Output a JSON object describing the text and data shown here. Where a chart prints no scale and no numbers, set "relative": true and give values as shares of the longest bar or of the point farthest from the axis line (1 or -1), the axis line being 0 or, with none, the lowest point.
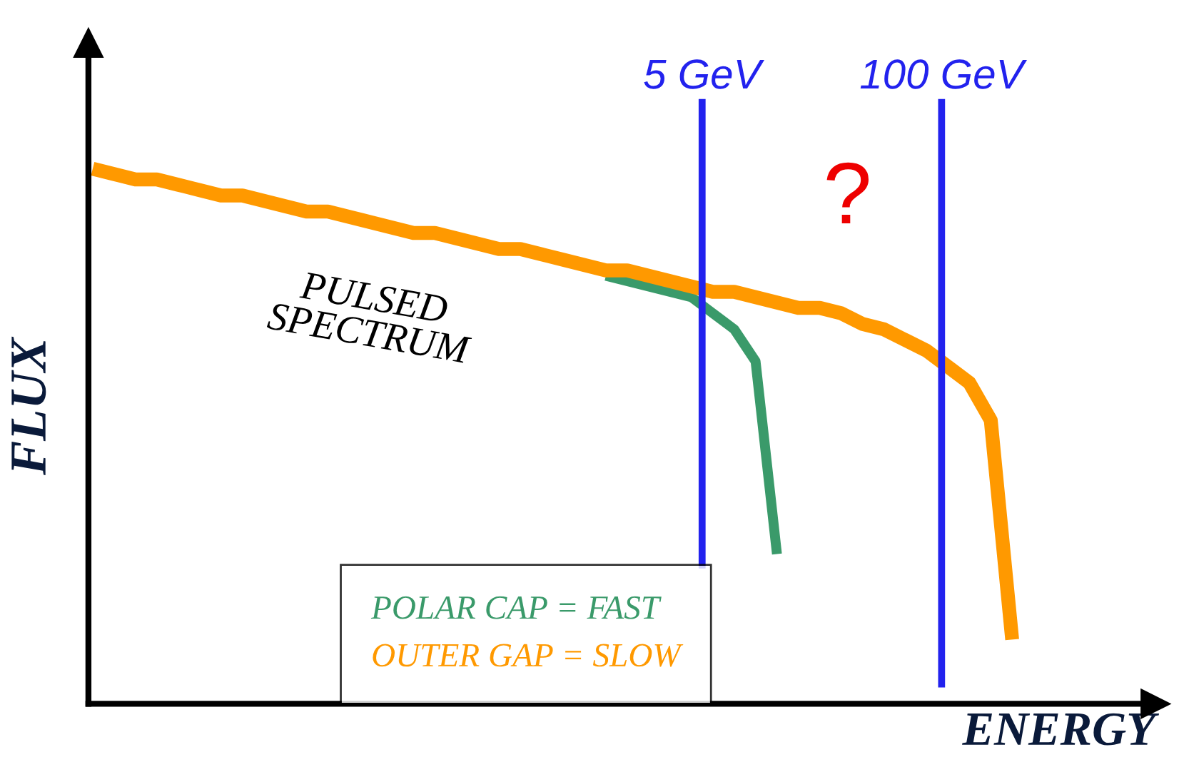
{
  "chart_data": {
    "type": "line",
    "relative": true,
    "xlabel": "ENERGY",
    "ylabel": "FLUX",
    "legend": "bottom",
    "marker": "none",
    "line_style": "solid",
    "categories": [
      null,
      null,
      null,
      null,
      null,
      null,
      null,
      null,
      null,
      null,
      null,
      null,
      null,
      null,
      null,
      null,
      null,
      null,
      null,
      null,
      null,
      null,
      null,
      null,
      null,
      null,
      null,
      null,
      null,
      null,
      null,
      null,
      null,
      null,
      null,
      null,
      null,
      null,
      null,
      null,
      null,
      null,
      null,
      null,
      null,
      null,
      null,
      null,
      null,
      null
    ],
    "series": [
      {
        "name": "POLAR CAP = FAST",
        "color": "#3a9a6a",
        "values": [
          null,
          null,
          null,
          null,
          null,
          null,
          null,
          null,
          null,
          null,
          null,
          null,
          null,
          null,
          null,
          null,
          null,
          null,
          null,
          null,
          null,
          null,
          null,
          null,
          0.8,
          0.79,
          0.78,
          0.77,
          0.76,
          0.73,
          0.7,
          0.64,
          0.28,
          null,
          null,
          null,
          null,
          null,
          null,
          null,
          null,
          null,
          null,
          null,
          null,
          null,
          null,
          null,
          null,
          null
        ]
      },
      {
        "name": "OUTER GAP = SLOW",
        "color": "#ff9900",
        "values": [
          1.0,
          0.99,
          0.98,
          0.98,
          0.97,
          0.96,
          0.95,
          0.95,
          0.94,
          0.93,
          0.92,
          0.92,
          0.91,
          0.9,
          0.89,
          0.88,
          0.88,
          0.87,
          0.86,
          0.85,
          0.85,
          0.84,
          0.83,
          0.82,
          0.81,
          0.81,
          0.8,
          0.79,
          0.78,
          0.77,
          0.77,
          0.76,
          0.75,
          0.74,
          0.74,
          0.73,
          0.71,
          0.7,
          0.68,
          0.66,
          0.63,
          0.6,
          0.53,
          0.12,
          null,
          null,
          null,
          null,
          null,
          null
        ]
      }
    ],
    "annotations": [
      "PULSED\nSPECTRUM",
      "?",
      "5 GeV",
      "100 GeV"
    ]
  }
}
